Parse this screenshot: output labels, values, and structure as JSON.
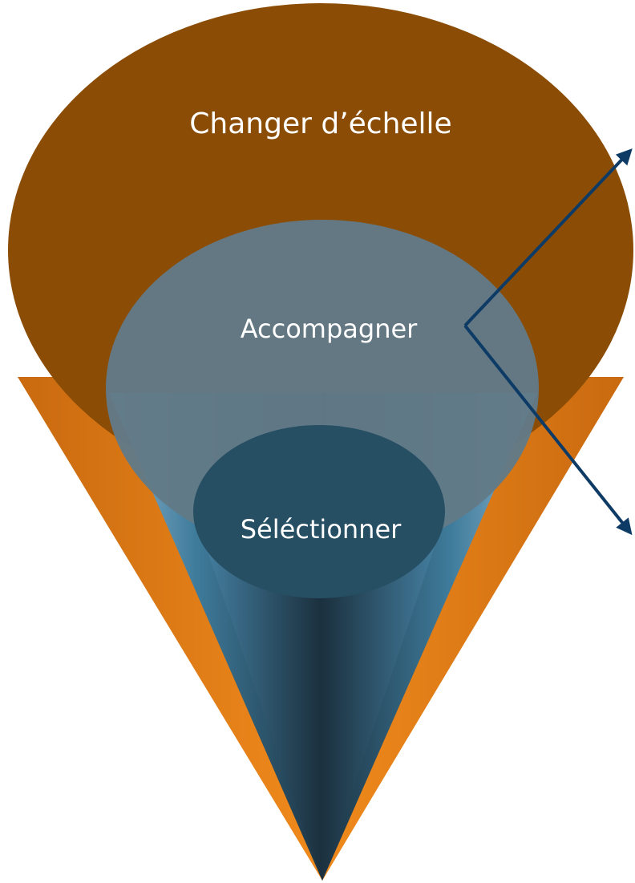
{
  "nodes": [
    {
      "label": "Changer d’échelle"
    },
    {
      "label": "Accompagner"
    },
    {
      "label": "Séléctionner"
    }
  ]
}
